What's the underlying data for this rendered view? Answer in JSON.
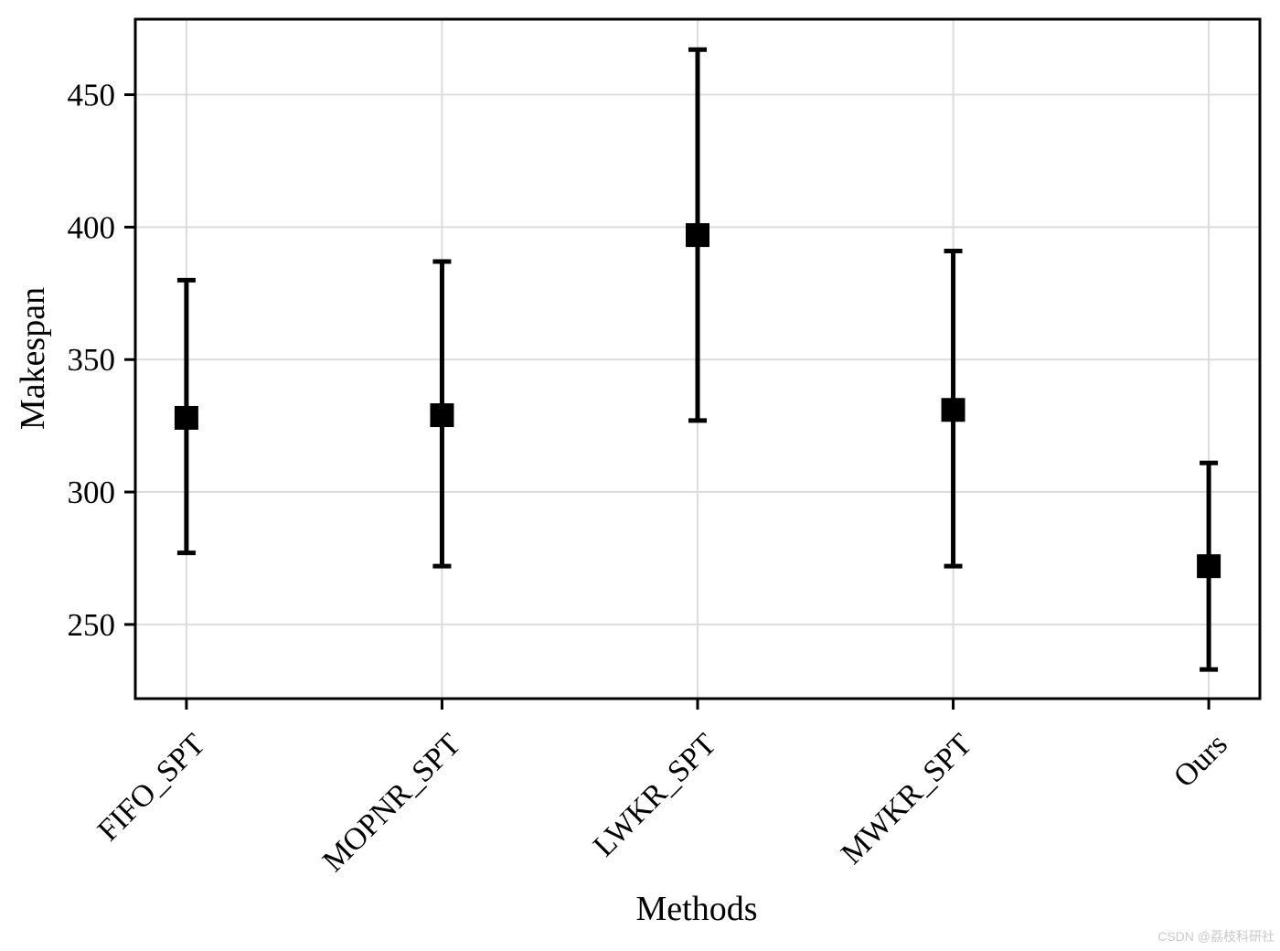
{
  "watermark": "CSDN @荔枝科研社",
  "colors": {
    "background": "#ffffff",
    "foreground": "#000000",
    "grid": "#dcdcdc",
    "watermark": "#c9c9c9"
  },
  "chart_data": {
    "type": "scatter",
    "style": "errorbar",
    "title": "",
    "xlabel": "Methods",
    "ylabel": "Makespan",
    "categories": [
      "FIFO_SPT",
      "MOPNR_SPT",
      "LWKR_SPT",
      "MWKR_SPT",
      "Ours"
    ],
    "series": [
      {
        "name": "Makespan",
        "means": [
          328,
          329,
          397,
          331,
          272
        ],
        "upper": [
          380,
          387,
          467,
          391,
          311
        ],
        "lower": [
          277,
          272,
          327,
          272,
          233
        ]
      }
    ],
    "y_ticks": [
      250,
      300,
      350,
      400,
      450
    ],
    "ylim": [
      222,
      478.5
    ],
    "grid": true,
    "legend": "none",
    "marker": "square"
  }
}
